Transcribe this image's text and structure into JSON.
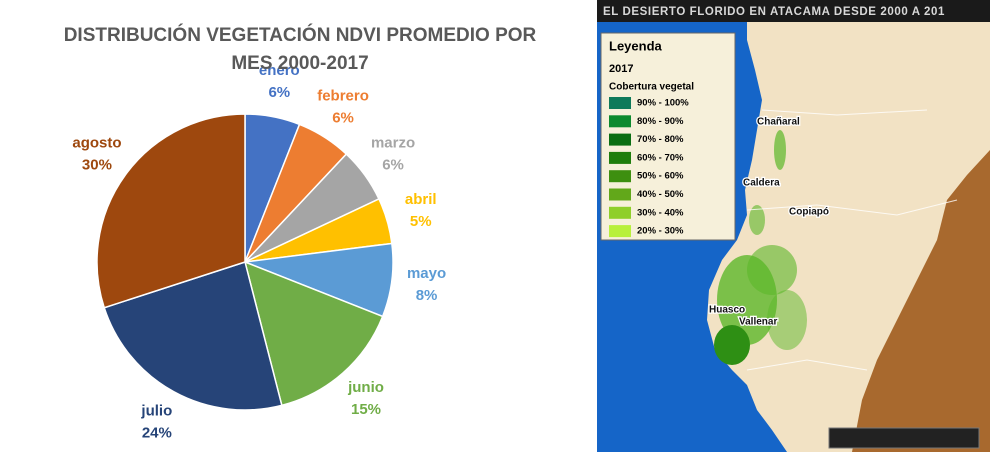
{
  "chart_data": {
    "type": "pie",
    "title": "DISTRIBUCIÓN VEGETACIÓN NDVI PROMEDIO POR MES 2000-2017",
    "categories": [
      "enero",
      "febrero",
      "marzo",
      "abril",
      "mayo",
      "junio",
      "julio",
      "agosto"
    ],
    "values": [
      6,
      6,
      6,
      5,
      8,
      15,
      24,
      30
    ],
    "value_labels": [
      "6%",
      "6%",
      "6%",
      "5%",
      "8%",
      "15%",
      "24%",
      "30%"
    ],
    "colors": [
      "#4472c4",
      "#ed7d31",
      "#a5a5a5",
      "#ffc000",
      "#5b9bd5",
      "#70ad47",
      "#264478",
      "#9e480e"
    ]
  },
  "map": {
    "title": "EL DESIERTO FLORIDO EN ATACAMA DESDE 2000 A 201",
    "legend": {
      "title": "Leyenda",
      "year": "2017",
      "subtitle": "Cobertura vegetal",
      "items": [
        {
          "label": "90% - 100%",
          "color": "#0f7a5a"
        },
        {
          "label": "80% - 90%",
          "color": "#0c8a2e"
        },
        {
          "label": "70% - 80%",
          "color": "#0a6e12"
        },
        {
          "label": "60% - 70%",
          "color": "#1e7d0c"
        },
        {
          "label": "50% - 60%",
          "color": "#3d8f10"
        },
        {
          "label": "40% - 50%",
          "color": "#62a81a"
        },
        {
          "label": "30% - 40%",
          "color": "#8fcf2a"
        },
        {
          "label": "20% - 30%",
          "color": "#b8f03c"
        }
      ]
    },
    "places": [
      "Chañaral",
      "Caldera",
      "Copiapó",
      "Huasco",
      "Vallenar"
    ]
  }
}
